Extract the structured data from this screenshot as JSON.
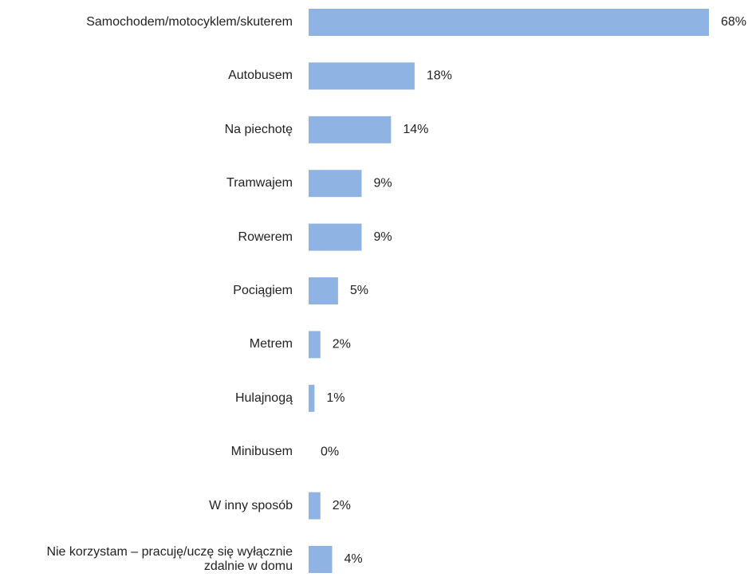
{
  "chart_data": {
    "type": "bar",
    "orientation": "horizontal",
    "categories": [
      "Samochodem/motocyklem/skuterem",
      "Autobusem",
      "Na piechotę",
      "Tramwajem",
      "Rowerem",
      "Pociągiem",
      "Metrem",
      "Hulajnogą",
      "Minibusem",
      "W inny sposób",
      "Nie korzystam – pracuję/uczę się wyłącznie zdalnie w domu"
    ],
    "values": [
      68,
      18,
      14,
      9,
      9,
      5,
      2,
      1,
      0,
      2,
      4
    ],
    "value_labels": [
      "68%",
      "18%",
      "14%",
      "9%",
      "9%",
      "5%",
      "2%",
      "1%",
      "0%",
      "2%",
      "4%"
    ],
    "color": "#8fb4e3"
  }
}
